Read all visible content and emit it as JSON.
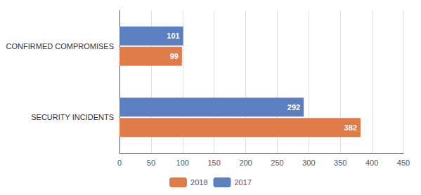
{
  "chart_data": {
    "type": "bar",
    "orientation": "horizontal",
    "categories": [
      "SECURITY INCIDENTS",
      "CONFIRMED COMPROMISES"
    ],
    "series": [
      {
        "name": "2017",
        "color": "#5B7FC1",
        "values": [
          292,
          101
        ]
      },
      {
        "name": "2018",
        "color": "#E07B4A",
        "values": [
          382,
          99
        ]
      }
    ],
    "xlim": [
      0,
      450
    ],
    "xticks": [
      0,
      50,
      100,
      150,
      200,
      250,
      300,
      350,
      400,
      450
    ],
    "grid": true,
    "legend": "bottom",
    "data_labels": true
  }
}
